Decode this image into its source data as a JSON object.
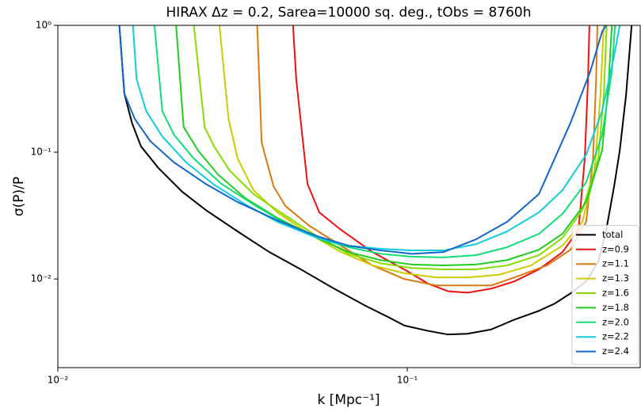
{
  "chart_data": {
    "type": "line",
    "title": "HIRAX Δz = 0.2, Sarea=10000 sq. deg., tObs = 8760h",
    "x_label": "k [Mpc⁻¹]",
    "y_label": "σ(P)/P",
    "x_log": true,
    "y_log": true,
    "xlim": [
      0.01,
      0.464
    ],
    "ylim": [
      0.002,
      1
    ],
    "xticks": [
      {
        "value": 0.01,
        "label": "10⁻²"
      },
      {
        "value": 0.1,
        "label": "10⁻¹"
      }
    ],
    "yticks": [
      {
        "value": 0.01,
        "label": "10⁻²"
      },
      {
        "value": 0.1,
        "label": "10⁻¹"
      },
      {
        "value": 1,
        "label": "10⁰"
      }
    ],
    "legend": "lower right",
    "series": [
      {
        "name": "total",
        "color": "#000000",
        "x": [
          0.015,
          0.0155,
          0.0163,
          0.0173,
          0.0194,
          0.0227,
          0.0265,
          0.0327,
          0.0403,
          0.0496,
          0.0612,
          0.0755,
          0.0883,
          0.098,
          0.1146,
          0.1306,
          0.1487,
          0.1738,
          0.2033,
          0.2377,
          0.2642,
          0.2931,
          0.3252,
          0.3521,
          0.371,
          0.3908,
          0.4055,
          0.4227,
          0.4385
        ],
        "values": [
          1,
          0.29,
          0.17,
          0.111,
          0.075,
          0.0487,
          0.035,
          0.0237,
          0.0163,
          0.0119,
          0.0085,
          0.0062,
          0.005,
          0.0043,
          0.0039,
          0.00365,
          0.0037,
          0.004,
          0.0048,
          0.0056,
          0.0064,
          0.0077,
          0.0096,
          0.0137,
          0.0244,
          0.0539,
          0.103,
          0.282,
          1
        ]
      },
      {
        "name": "z=0.9",
        "color": "#ee1111",
        "x": [
          0.0471,
          0.0481,
          0.0518,
          0.056,
          0.0646,
          0.0795,
          0.098,
          0.1146,
          0.131,
          0.149,
          0.174,
          0.203,
          0.238,
          0.278,
          0.309,
          0.322,
          0.329,
          0.332
        ],
        "values": [
          1,
          0.376,
          0.0562,
          0.0335,
          0.0244,
          0.0163,
          0.0119,
          0.0092,
          0.008,
          0.0078,
          0.0084,
          0.0096,
          0.0119,
          0.0163,
          0.0244,
          0.089,
          0.376,
          1
        ]
      },
      {
        "name": "z=1.1",
        "color": "#d97a10",
        "x": [
          0.0372,
          0.0383,
          0.0414,
          0.0448,
          0.0524,
          0.0646,
          0.0795,
          0.098,
          0.121,
          0.149,
          0.174,
          0.203,
          0.251,
          0.293,
          0.325,
          0.34,
          0.347,
          0.35
        ],
        "values": [
          1,
          0.119,
          0.054,
          0.0376,
          0.0263,
          0.0183,
          0.0128,
          0.01,
          0.0089,
          0.0089,
          0.0089,
          0.0103,
          0.0128,
          0.017,
          0.0282,
          0.089,
          0.376,
          1
        ]
      },
      {
        "name": "z=1.3",
        "color": "#cccc00",
        "x": [
          0.029,
          0.0308,
          0.0327,
          0.0363,
          0.0425,
          0.0524,
          0.0646,
          0.0795,
          0.098,
          0.121,
          0.149,
          0.183,
          0.226,
          0.278,
          0.317,
          0.343,
          0.357,
          0.365
        ],
        "values": [
          1,
          0.183,
          0.089,
          0.0501,
          0.0335,
          0.0227,
          0.0163,
          0.0128,
          0.0111,
          0.0103,
          0.0103,
          0.0108,
          0.0128,
          0.0183,
          0.0282,
          0.0668,
          0.282,
          1
        ]
      },
      {
        "name": "z=1.6",
        "color": "#88dd00",
        "x": [
          0.0245,
          0.0263,
          0.028,
          0.031,
          0.0363,
          0.0448,
          0.0551,
          0.0679,
          0.0838,
          0.103,
          0.127,
          0.157,
          0.193,
          0.238,
          0.278,
          0.317,
          0.352,
          0.365,
          0.372
        ],
        "values": [
          1,
          0.158,
          0.111,
          0.0718,
          0.0467,
          0.0316,
          0.0218,
          0.0158,
          0.0133,
          0.0122,
          0.0119,
          0.0119,
          0.0128,
          0.0154,
          0.0211,
          0.035,
          0.089,
          0.282,
          1
        ]
      },
      {
        "name": "z=1.8",
        "color": "#22cc22",
        "x": [
          0.0218,
          0.0229,
          0.0252,
          0.0287,
          0.0344,
          0.0425,
          0.0551,
          0.0679,
          0.0838,
          0.103,
          0.127,
          0.157,
          0.193,
          0.238,
          0.278,
          0.325,
          0.361,
          0.376,
          0.385
        ],
        "values": [
          1,
          0.158,
          0.103,
          0.0668,
          0.0434,
          0.0303,
          0.0211,
          0.0163,
          0.0141,
          0.013,
          0.0128,
          0.013,
          0.0141,
          0.017,
          0.0227,
          0.0404,
          0.103,
          0.326,
          1
        ]
      },
      {
        "name": "z=2.0",
        "color": "#11dd77",
        "x": [
          0.0189,
          0.0199,
          0.0215,
          0.0245,
          0.0294,
          0.0363,
          0.0448,
          0.0551,
          0.0679,
          0.0838,
          0.103,
          0.127,
          0.157,
          0.193,
          0.238,
          0.278,
          0.325,
          0.361,
          0.385,
          0.393
        ],
        "values": [
          1,
          0.211,
          0.137,
          0.089,
          0.0562,
          0.0387,
          0.0274,
          0.0211,
          0.0178,
          0.0158,
          0.015,
          0.0148,
          0.0154,
          0.0178,
          0.0227,
          0.0326,
          0.0579,
          0.137,
          0.434,
          1
        ]
      },
      {
        "name": "z=2.2",
        "color": "#11ccdd",
        "x": [
          0.0164,
          0.0168,
          0.0179,
          0.0199,
          0.0233,
          0.028,
          0.0344,
          0.0425,
          0.0551,
          0.0679,
          0.0838,
          0.103,
          0.127,
          0.157,
          0.193,
          0.238,
          0.278,
          0.325,
          0.361,
          0.391,
          0.4055
        ],
        "values": [
          1,
          0.376,
          0.211,
          0.133,
          0.083,
          0.0554,
          0.0387,
          0.0282,
          0.0211,
          0.0183,
          0.0173,
          0.0168,
          0.0168,
          0.0188,
          0.0237,
          0.0335,
          0.0501,
          0.0958,
          0.211,
          0.579,
          1
        ]
      },
      {
        "name": "z=2.4",
        "color": "#1166cc",
        "x": [
          0.015,
          0.0155,
          0.0166,
          0.0184,
          0.0215,
          0.0265,
          0.0327,
          0.0425,
          0.0551,
          0.0679,
          0.0838,
          0.103,
          0.127,
          0.157,
          0.193,
          0.238,
          0.293,
          0.334,
          0.361,
          0.371
        ],
        "values": [
          1,
          0.29,
          0.183,
          0.122,
          0.083,
          0.0562,
          0.0404,
          0.029,
          0.0218,
          0.0183,
          0.0168,
          0.0158,
          0.0163,
          0.0205,
          0.0282,
          0.0467,
          0.17,
          0.434,
          0.891,
          1
        ]
      }
    ]
  }
}
